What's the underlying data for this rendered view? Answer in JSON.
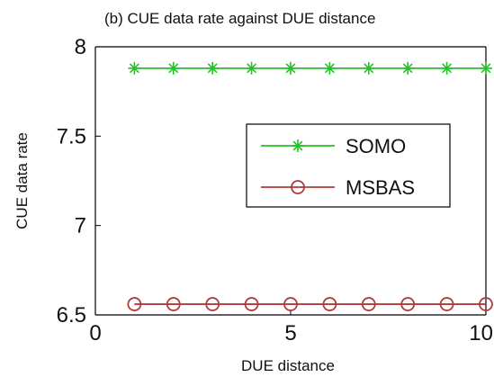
{
  "chart_data": {
    "type": "line",
    "title": "(b) CUE data rate against DUE distance",
    "xlabel": "DUE distance",
    "ylabel": "CUE data rate",
    "xlim": [
      0,
      10
    ],
    "ylim": [
      6.5,
      8
    ],
    "xticks": [
      "0",
      "5",
      "10"
    ],
    "yticks": [
      "8",
      "7.5",
      "7",
      "6.5"
    ],
    "x": [
      1,
      2,
      3,
      4,
      5,
      6,
      7,
      8,
      9,
      10
    ],
    "series": [
      {
        "name": "SOMO",
        "color": "#22c422",
        "marker": "star",
        "values": [
          7.88,
          7.88,
          7.88,
          7.88,
          7.88,
          7.88,
          7.88,
          7.88,
          7.88,
          7.88
        ]
      },
      {
        "name": "MSBAS",
        "color": "#b13a3a",
        "marker": "circle",
        "values": [
          6.56,
          6.56,
          6.56,
          6.56,
          6.56,
          6.56,
          6.56,
          6.56,
          6.56,
          6.56
        ]
      }
    ],
    "grid": false,
    "legend_position": "right"
  }
}
